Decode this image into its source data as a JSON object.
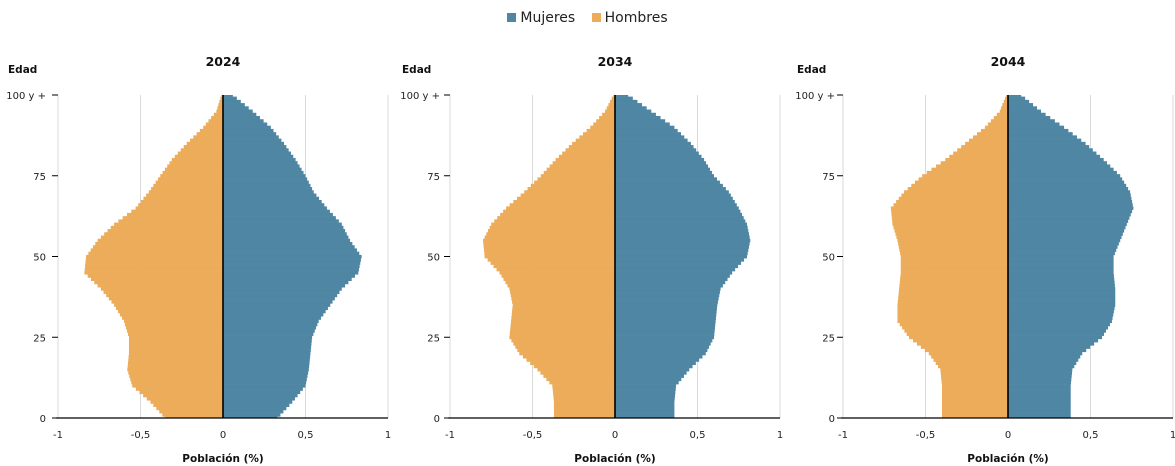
{
  "legend": {
    "female_label": "Mujeres",
    "male_label": "Hombres"
  },
  "colors": {
    "female": "#4e86a3",
    "male": "#ecac5a",
    "axis": "#000000",
    "grid": "#d9d9d9"
  },
  "chart_data": [
    {
      "type": "population_pyramid",
      "title": "2024",
      "ylabel": "Edad",
      "xlabel": "Población (%)",
      "xlim": [
        -1,
        1
      ],
      "x_ticks": [
        -1,
        -0.5,
        0,
        0.5,
        1
      ],
      "x_tick_labels": [
        "-1",
        "-0,5",
        "0",
        "0,5",
        "1"
      ],
      "y_ticks": [
        0,
        25,
        50,
        75,
        100
      ],
      "y_tick_labels": [
        "0",
        "25",
        "50",
        "75",
        "100 y +"
      ],
      "grid": true,
      "series": [
        {
          "name": "Mujeres",
          "side": "right",
          "ages": [
            0,
            5,
            10,
            15,
            20,
            25,
            30,
            35,
            40,
            45,
            50,
            55,
            60,
            65,
            70,
            75,
            80,
            85,
            90,
            95,
            100
          ],
          "values": [
            0.33,
            0.42,
            0.5,
            0.52,
            0.53,
            0.54,
            0.58,
            0.65,
            0.72,
            0.82,
            0.84,
            0.77,
            0.72,
            0.63,
            0.55,
            0.5,
            0.44,
            0.37,
            0.29,
            0.18,
            0.06
          ]
        },
        {
          "name": "Hombres",
          "side": "left",
          "ages": [
            0,
            5,
            10,
            15,
            20,
            25,
            30,
            35,
            40,
            45,
            50,
            55,
            60,
            65,
            70,
            75,
            80,
            85,
            90,
            95,
            100
          ],
          "values": [
            0.35,
            0.44,
            0.55,
            0.58,
            0.57,
            0.57,
            0.6,
            0.66,
            0.74,
            0.84,
            0.83,
            0.76,
            0.66,
            0.53,
            0.45,
            0.38,
            0.31,
            0.22,
            0.12,
            0.04,
            0.01
          ]
        }
      ]
    },
    {
      "type": "population_pyramid",
      "title": "2034",
      "ylabel": "Edad",
      "xlabel": "Población (%)",
      "xlim": [
        -1,
        1
      ],
      "x_ticks": [
        -1,
        -0.5,
        0,
        0.5,
        1
      ],
      "x_tick_labels": [
        "-1",
        "-0,5",
        "0",
        "0,5",
        "1"
      ],
      "y_ticks": [
        0,
        25,
        50,
        75,
        100
      ],
      "y_tick_labels": [
        "0",
        "25",
        "50",
        "75",
        "100 y +"
      ],
      "grid": true,
      "series": [
        {
          "name": "Mujeres",
          "side": "right",
          "ages": [
            0,
            5,
            10,
            15,
            20,
            25,
            30,
            35,
            40,
            45,
            50,
            55,
            60,
            65,
            70,
            75,
            80,
            85,
            90,
            95,
            100
          ],
          "values": [
            0.36,
            0.36,
            0.37,
            0.45,
            0.55,
            0.6,
            0.61,
            0.62,
            0.64,
            0.71,
            0.8,
            0.82,
            0.8,
            0.75,
            0.69,
            0.6,
            0.54,
            0.46,
            0.36,
            0.22,
            0.08
          ]
        },
        {
          "name": "Hombres",
          "side": "left",
          "ages": [
            0,
            5,
            10,
            15,
            20,
            25,
            30,
            35,
            40,
            45,
            50,
            55,
            60,
            65,
            70,
            75,
            80,
            85,
            90,
            95,
            100
          ],
          "values": [
            0.37,
            0.37,
            0.38,
            0.47,
            0.58,
            0.64,
            0.63,
            0.62,
            0.64,
            0.7,
            0.79,
            0.8,
            0.75,
            0.66,
            0.55,
            0.45,
            0.36,
            0.26,
            0.15,
            0.06,
            0.01
          ]
        }
      ]
    },
    {
      "type": "population_pyramid",
      "title": "2044",
      "ylabel": "Edad",
      "xlabel": "Población (%)",
      "xlim": [
        -1,
        1
      ],
      "x_ticks": [
        -1,
        -0.5,
        0,
        0.5,
        1
      ],
      "x_tick_labels": [
        "-1",
        "-0,5",
        "0",
        "0,5",
        "1"
      ],
      "y_ticks": [
        0,
        25,
        50,
        75,
        100
      ],
      "y_tick_labels": [
        "0",
        "25",
        "50",
        "75",
        "100 y +"
      ],
      "grid": true,
      "series": [
        {
          "name": "Mujeres",
          "side": "right",
          "ages": [
            0,
            5,
            10,
            15,
            20,
            25,
            30,
            35,
            40,
            45,
            50,
            55,
            60,
            65,
            70,
            75,
            80,
            85,
            90,
            95,
            100
          ],
          "values": [
            0.38,
            0.38,
            0.38,
            0.39,
            0.45,
            0.57,
            0.63,
            0.65,
            0.65,
            0.64,
            0.64,
            0.68,
            0.72,
            0.76,
            0.74,
            0.68,
            0.58,
            0.47,
            0.34,
            0.2,
            0.08
          ]
        },
        {
          "name": "Hombres",
          "side": "left",
          "ages": [
            0,
            5,
            10,
            15,
            20,
            25,
            30,
            35,
            40,
            45,
            50,
            55,
            60,
            65,
            70,
            75,
            80,
            85,
            90,
            95,
            100
          ],
          "values": [
            0.4,
            0.4,
            0.4,
            0.41,
            0.48,
            0.6,
            0.67,
            0.67,
            0.66,
            0.65,
            0.65,
            0.67,
            0.7,
            0.71,
            0.63,
            0.52,
            0.38,
            0.26,
            0.14,
            0.05,
            0.01
          ]
        }
      ]
    }
  ]
}
